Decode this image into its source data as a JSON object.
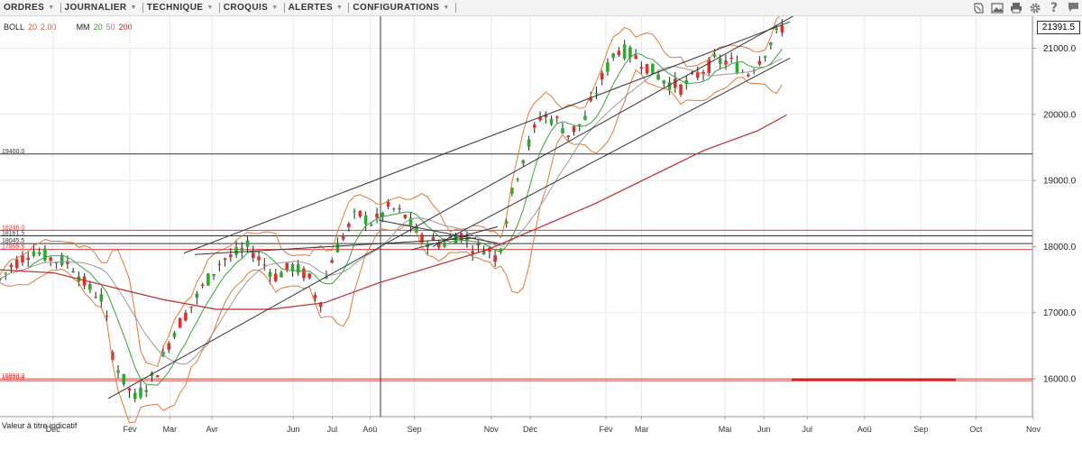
{
  "menu": {
    "items": [
      "ORDRES",
      "JOURNALIER",
      "TECHNIQUE",
      "CROQUIS",
      "ALERTES",
      "CONFIGURATIONS"
    ]
  },
  "toolbar": {
    "icons": [
      "layers-icon",
      "image-icon",
      "print-icon",
      "settings-icon",
      "help-icon",
      "comment-icon"
    ]
  },
  "legend": {
    "boll_label": "BOLL",
    "boll_period": "20",
    "boll_dev": "2.00",
    "mm_label": "MM",
    "mm_1": "20",
    "mm_2": "50",
    "mm_3": "200"
  },
  "current_price": "21391.5",
  "disclaimer": "Valeur à titre indicatif",
  "colors": {
    "bull": "#2ea82e",
    "bear": "#e0302c",
    "bollinger": "#e07a3a",
    "mm20": "#3aa03a",
    "mm50": "#999999",
    "mm200": "#c0282a",
    "levels_red": "#d84040",
    "levels_black": "#333333"
  },
  "chart_data": {
    "type": "candlestick",
    "y_axis": {
      "ticks": [
        21000.0,
        20000.0,
        19000.0,
        18000.0,
        17000.0,
        16000.0
      ],
      "tick_labels": [
        "21000.0",
        "20000.0",
        "19000.0",
        "18000.0",
        "17000.0",
        "16000.0"
      ],
      "min": 15300,
      "max": 21800,
      "position": "right"
    },
    "x_axis": {
      "labels": [
        "Déc",
        "Fév",
        "Mar",
        "Avr",
        "Jun",
        "Jul",
        "Aoû",
        "Sep",
        "Nov",
        "Déc",
        "Fév",
        "Mar",
        "Mai",
        "Jun",
        "Jul",
        "Aoû",
        "Sep",
        "Oct",
        "Nov"
      ],
      "label_fractions": [
        0.049,
        0.12,
        0.157,
        0.196,
        0.271,
        0.307,
        0.342,
        0.383,
        0.454,
        0.49,
        0.56,
        0.593,
        0.67,
        0.706,
        0.746,
        0.799,
        0.851,
        0.902,
        0.955
      ]
    },
    "horizontal_levels": [
      {
        "value": 19400.0,
        "label": "19400.0",
        "color": "black"
      },
      {
        "value": 18246.0,
        "label": "18246.0",
        "color": "red"
      },
      {
        "value": 18161.5,
        "label": "18161.5",
        "color": "black"
      },
      {
        "value": 18045.5,
        "label": "18045.5",
        "color": "black"
      },
      {
        "value": 17955.5,
        "label": "17955.5",
        "color": "red"
      },
      {
        "value": 15998.3,
        "label": "15998.3",
        "color": "red"
      },
      {
        "value": 15970.8,
        "label": "15970.8",
        "color": "red"
      }
    ],
    "last_price": 21391.5,
    "series": [
      {
        "name": "BOLL 20 2.00"
      },
      {
        "name": "MM 20"
      },
      {
        "name": "MM 50"
      },
      {
        "name": "MM 200"
      }
    ]
  }
}
